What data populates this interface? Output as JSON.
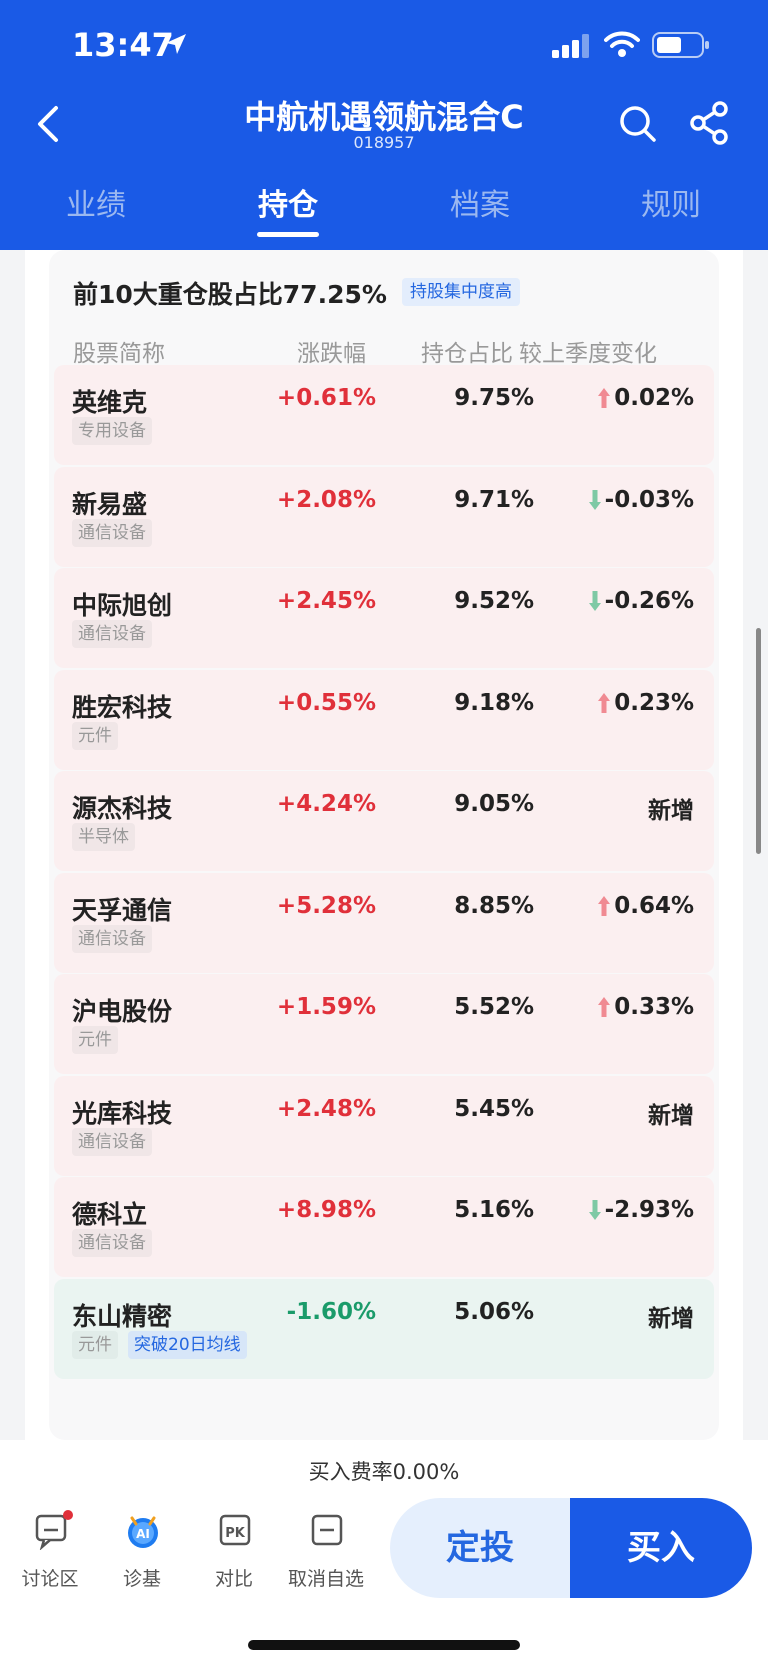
{
  "status": {
    "time": "13:47"
  },
  "header": {
    "title": "中航机遇领航混合C",
    "code": "018957"
  },
  "tabs": [
    {
      "label": "业绩",
      "active": false
    },
    {
      "label": "持仓",
      "active": true
    },
    {
      "label": "档案",
      "active": false
    },
    {
      "label": "规则",
      "active": false
    }
  ],
  "summary": {
    "title": "前10大重仓股占比77.25%",
    "badge": "持股集中度高"
  },
  "columns": {
    "name": "股票简称",
    "change": "涨跌幅",
    "ratio": "持仓占比",
    "delta": "较上季度变化"
  },
  "holdings": [
    {
      "name": "英维克",
      "tag": "专用设备",
      "change": "+0.61%",
      "ratio": "9.75%",
      "delta": "0.02%",
      "trend": "up",
      "dir": "up"
    },
    {
      "name": "新易盛",
      "tag": "通信设备",
      "change": "+2.08%",
      "ratio": "9.71%",
      "delta": "-0.03%",
      "trend": "down",
      "dir": "up"
    },
    {
      "name": "中际旭创",
      "tag": "通信设备",
      "change": "+2.45%",
      "ratio": "9.52%",
      "delta": "-0.26%",
      "trend": "down",
      "dir": "up"
    },
    {
      "name": "胜宏科技",
      "tag": "元件",
      "change": "+0.55%",
      "ratio": "9.18%",
      "delta": "0.23%",
      "trend": "up",
      "dir": "up"
    },
    {
      "name": "源杰科技",
      "tag": "半导体",
      "change": "+4.24%",
      "ratio": "9.05%",
      "delta": "新增",
      "trend": "new",
      "dir": "up"
    },
    {
      "name": "天孚通信",
      "tag": "通信设备",
      "change": "+5.28%",
      "ratio": "8.85%",
      "delta": "0.64%",
      "trend": "up",
      "dir": "up"
    },
    {
      "name": "沪电股份",
      "tag": "元件",
      "change": "+1.59%",
      "ratio": "5.52%",
      "delta": "0.33%",
      "trend": "up",
      "dir": "up"
    },
    {
      "name": "光库科技",
      "tag": "通信设备",
      "change": "+2.48%",
      "ratio": "5.45%",
      "delta": "新增",
      "trend": "new",
      "dir": "up"
    },
    {
      "name": "德科立",
      "tag": "通信设备",
      "change": "+8.98%",
      "ratio": "5.16%",
      "delta": "-2.93%",
      "trend": "down",
      "dir": "up"
    },
    {
      "name": "东山精密",
      "tag": "元件",
      "tag2": "突破20日均线",
      "change": "-1.60%",
      "ratio": "5.06%",
      "delta": "新增",
      "trend": "new",
      "dir": "down"
    }
  ],
  "bottom": {
    "fee": "买入费率0.00%",
    "actions": [
      {
        "label": "讨论区",
        "icon": "chat-icon"
      },
      {
        "label": "诊基",
        "icon": "ai-icon"
      },
      {
        "label": "对比",
        "icon": "pk-icon"
      },
      {
        "label": "取消自选",
        "icon": "minus-icon"
      }
    ],
    "dingtou": "定投",
    "buy": "买入"
  },
  "colors": {
    "brand": "#1a5ae6",
    "up": "#e0303a",
    "down": "#1a9b6a"
  }
}
